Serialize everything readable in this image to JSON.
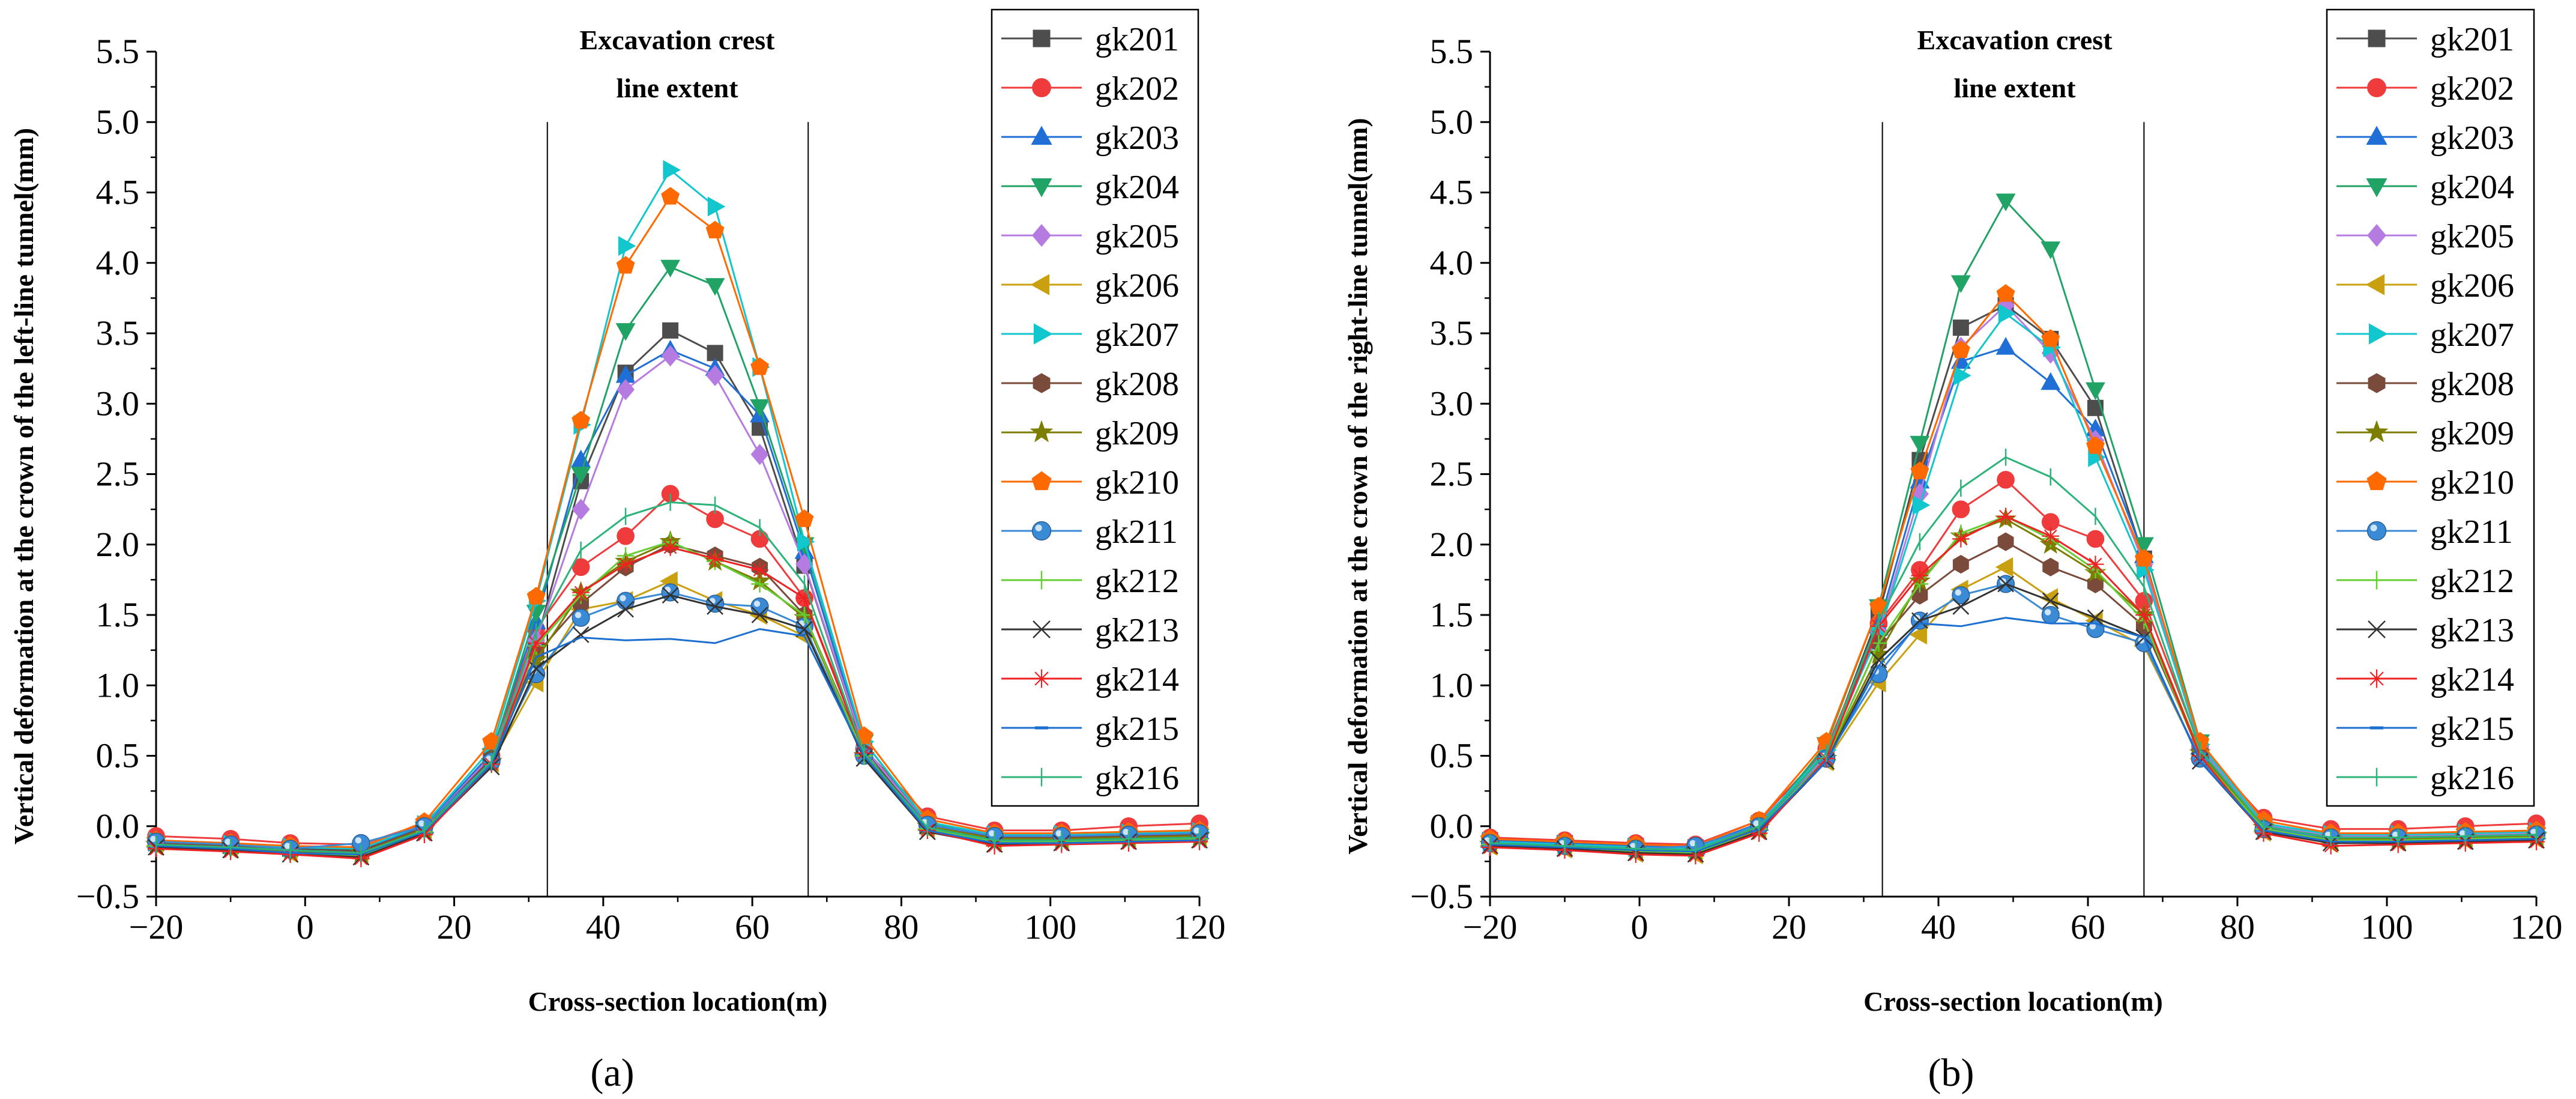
{
  "chart_data": [
    {
      "type": "line",
      "panel_label": "(a)",
      "panel_letter": "a",
      "title": "",
      "xlabel": "Cross-section location(m)",
      "ylabel": "Vertical deformation at the crown of the left-line tunnel(mm)",
      "xlim": [
        -20,
        120
      ],
      "ylim": [
        -0.5,
        5.5
      ],
      "xticks": [
        -20,
        0,
        20,
        40,
        60,
        80,
        100,
        120
      ],
      "xtick_labels": [
        "−20",
        "0",
        "20",
        "40",
        "60",
        "80",
        "100",
        "120"
      ],
      "yticks": [
        -0.5,
        0.0,
        0.5,
        1.0,
        1.5,
        2.0,
        2.5,
        3.0,
        3.5,
        4.0,
        4.5,
        5.0,
        5.5
      ],
      "ytick_labels": [
        "−0.5",
        "0.0",
        "0.5",
        "1.0",
        "1.5",
        "2.0",
        "2.5",
        "3.0",
        "3.5",
        "4.0",
        "4.5",
        "5.0",
        "5.5"
      ],
      "grid": false,
      "legend_position": "top-right",
      "vlines": [
        32.5,
        67.5
      ],
      "annotation": [
        "Excavation crest",
        "line extent"
      ],
      "x": [
        -20,
        -10,
        -2,
        7.5,
        16,
        25,
        31,
        37,
        43,
        49,
        55,
        61,
        67,
        75,
        83.5,
        92.5,
        101.5,
        110.5,
        120
      ],
      "series": [
        {
          "name": "gk201",
          "values": [
            -0.12,
            -0.14,
            -0.16,
            -0.17,
            0.0,
            0.5,
            1.3,
            2.45,
            3.22,
            3.52,
            3.36,
            2.83,
            1.85,
            0.55,
            0.0,
            -0.07,
            -0.07,
            -0.06,
            -0.05
          ]
        },
        {
          "name": "gk202",
          "values": [
            -0.07,
            -0.09,
            -0.12,
            -0.13,
            0.02,
            0.5,
            1.4,
            1.84,
            2.06,
            2.36,
            2.18,
            2.04,
            1.62,
            0.55,
            0.07,
            -0.03,
            -0.03,
            0.0,
            0.02
          ]
        },
        {
          "name": "gk203",
          "values": [
            -0.1,
            -0.12,
            -0.15,
            -0.16,
            0.0,
            0.52,
            1.45,
            2.6,
            3.2,
            3.38,
            3.25,
            2.92,
            1.95,
            0.56,
            0.02,
            -0.06,
            -0.06,
            -0.05,
            -0.04
          ]
        },
        {
          "name": "gk204",
          "values": [
            -0.13,
            -0.15,
            -0.18,
            -0.19,
            -0.02,
            0.5,
            1.52,
            2.5,
            3.52,
            3.97,
            3.84,
            2.98,
            2.0,
            0.6,
            0.02,
            -0.08,
            -0.08,
            -0.08,
            -0.07
          ]
        },
        {
          "name": "gk205",
          "values": [
            -0.12,
            -0.14,
            -0.17,
            -0.18,
            -0.01,
            0.5,
            1.32,
            2.25,
            3.1,
            3.34,
            3.2,
            2.64,
            1.86,
            0.56,
            0.01,
            -0.07,
            -0.07,
            -0.06,
            -0.05
          ]
        },
        {
          "name": "gk206",
          "values": [
            -0.14,
            -0.16,
            -0.19,
            -0.2,
            -0.03,
            0.45,
            1.02,
            1.54,
            1.6,
            1.74,
            1.6,
            1.5,
            1.35,
            0.5,
            -0.02,
            -0.1,
            -0.1,
            -0.09,
            -0.08
          ]
        },
        {
          "name": "gk207",
          "values": [
            -0.11,
            -0.13,
            -0.15,
            -0.16,
            0.01,
            0.55,
            1.6,
            2.85,
            4.12,
            4.66,
            4.4,
            3.26,
            2.02,
            0.6,
            0.03,
            -0.06,
            -0.06,
            -0.05,
            -0.04
          ]
        },
        {
          "name": "gk208",
          "values": [
            -0.12,
            -0.14,
            -0.17,
            -0.18,
            -0.01,
            0.48,
            1.22,
            1.58,
            1.84,
            2.0,
            1.92,
            1.84,
            1.5,
            0.52,
            0.01,
            -0.08,
            -0.08,
            -0.07,
            -0.06
          ]
        },
        {
          "name": "gk209",
          "values": [
            -0.13,
            -0.15,
            -0.18,
            -0.19,
            -0.02,
            0.46,
            1.18,
            1.66,
            1.88,
            2.02,
            1.88,
            1.74,
            1.48,
            0.5,
            0.0,
            -0.09,
            -0.09,
            -0.08,
            -0.07
          ]
        },
        {
          "name": "gk210",
          "values": [
            -0.1,
            -0.12,
            -0.14,
            -0.15,
            0.03,
            0.6,
            1.63,
            2.88,
            3.98,
            4.47,
            4.23,
            3.26,
            2.18,
            0.64,
            0.05,
            -0.05,
            -0.05,
            -0.04,
            -0.03
          ]
        },
        {
          "name": "gk211",
          "values": [
            -0.11,
            -0.13,
            -0.16,
            -0.12,
            0.0,
            0.46,
            1.08,
            1.48,
            1.6,
            1.66,
            1.58,
            1.56,
            1.42,
            0.5,
            0.01,
            -0.07,
            -0.07,
            -0.06,
            -0.05
          ]
        },
        {
          "name": "gk212",
          "values": [
            -0.14,
            -0.16,
            -0.19,
            -0.21,
            -0.04,
            0.44,
            1.28,
            1.64,
            1.92,
            2.02,
            1.88,
            1.72,
            1.5,
            0.5,
            -0.02,
            -0.11,
            -0.11,
            -0.1,
            -0.09
          ]
        },
        {
          "name": "gk213",
          "values": [
            -0.15,
            -0.17,
            -0.2,
            -0.22,
            -0.05,
            0.42,
            1.12,
            1.36,
            1.54,
            1.64,
            1.56,
            1.5,
            1.4,
            0.48,
            -0.04,
            -0.13,
            -0.12,
            -0.11,
            -0.1
          ]
        },
        {
          "name": "gk214",
          "values": [
            -0.16,
            -0.18,
            -0.2,
            -0.23,
            -0.06,
            0.44,
            1.3,
            1.66,
            1.86,
            1.98,
            1.9,
            1.82,
            1.62,
            0.52,
            -0.03,
            -0.14,
            -0.13,
            -0.12,
            -0.11
          ]
        },
        {
          "name": "gk215",
          "values": [
            -0.14,
            -0.16,
            -0.19,
            -0.2,
            -0.04,
            0.44,
            1.2,
            1.34,
            1.32,
            1.33,
            1.3,
            1.4,
            1.35,
            0.5,
            -0.03,
            -0.12,
            -0.12,
            -0.11,
            -0.1
          ]
        },
        {
          "name": "gk216",
          "values": [
            -0.13,
            -0.15,
            -0.17,
            -0.19,
            -0.03,
            0.46,
            1.38,
            1.96,
            2.2,
            2.3,
            2.28,
            2.12,
            1.72,
            0.52,
            -0.01,
            -0.1,
            -0.1,
            -0.09,
            -0.08
          ]
        }
      ]
    },
    {
      "type": "line",
      "panel_label": "(b)",
      "panel_letter": "b",
      "title": "",
      "xlabel": "Cross-section location(m)",
      "ylabel": "Vertical deformation at the crown of the right-line tunnel(mm)",
      "xlim": [
        -20,
        120
      ],
      "ylim": [
        -0.5,
        5.5
      ],
      "xticks": [
        -20,
        0,
        20,
        40,
        60,
        80,
        100,
        120
      ],
      "xtick_labels": [
        "−20",
        "0",
        "20",
        "40",
        "60",
        "80",
        "100",
        "120"
      ],
      "yticks": [
        -0.5,
        0.0,
        0.5,
        1.0,
        1.5,
        2.0,
        2.5,
        3.0,
        3.5,
        4.0,
        4.5,
        5.0,
        5.5
      ],
      "ytick_labels": [
        "−0.5",
        "0.0",
        "0.5",
        "1.0",
        "1.5",
        "2.0",
        "2.5",
        "3.0",
        "3.5",
        "4.0",
        "4.5",
        "5.0",
        "5.5"
      ],
      "grid": false,
      "legend_position": "top-right",
      "vlines": [
        32.5,
        67.5
      ],
      "annotation": [
        "Excavation crest",
        "line extent"
      ],
      "x": [
        -20,
        -10,
        -0.5,
        7.5,
        16,
        25,
        32,
        37.5,
        43,
        49,
        55,
        61,
        67.5,
        75,
        83.5,
        92.5,
        101.5,
        110.5,
        120
      ],
      "series": [
        {
          "name": "gk201",
          "values": [
            -0.1,
            -0.12,
            -0.14,
            -0.15,
            0.02,
            0.52,
            1.5,
            2.6,
            3.54,
            3.7,
            3.46,
            2.97,
            1.9,
            0.56,
            0.02,
            -0.06,
            -0.06,
            -0.05,
            -0.04
          ]
        },
        {
          "name": "gk202",
          "values": [
            -0.08,
            -0.1,
            -0.12,
            -0.13,
            0.04,
            0.55,
            1.44,
            1.82,
            2.25,
            2.46,
            2.16,
            2.04,
            1.6,
            0.56,
            0.06,
            -0.02,
            -0.02,
            0.0,
            0.02
          ]
        },
        {
          "name": "gk203",
          "values": [
            -0.1,
            -0.12,
            -0.14,
            -0.15,
            0.02,
            0.52,
            1.42,
            2.45,
            3.3,
            3.4,
            3.15,
            2.82,
            1.92,
            0.56,
            0.02,
            -0.06,
            -0.06,
            -0.05,
            -0.04
          ]
        },
        {
          "name": "gk204",
          "values": [
            -0.12,
            -0.14,
            -0.17,
            -0.18,
            -0.01,
            0.58,
            1.56,
            2.72,
            3.86,
            4.44,
            4.1,
            3.1,
            2.0,
            0.6,
            0.0,
            -0.08,
            -0.08,
            -0.07,
            -0.06
          ]
        },
        {
          "name": "gk205",
          "values": [
            -0.11,
            -0.13,
            -0.15,
            -0.16,
            0.01,
            0.5,
            1.38,
            2.36,
            3.4,
            3.7,
            3.36,
            2.74,
            1.86,
            0.56,
            0.01,
            -0.07,
            -0.07,
            -0.06,
            -0.05
          ]
        },
        {
          "name": "gk206",
          "values": [
            -0.14,
            -0.16,
            -0.19,
            -0.2,
            -0.03,
            0.46,
            1.02,
            1.36,
            1.68,
            1.84,
            1.62,
            1.46,
            1.28,
            0.48,
            -0.04,
            -0.12,
            -0.11,
            -0.1,
            -0.09
          ]
        },
        {
          "name": "gk207",
          "values": [
            -0.11,
            -0.13,
            -0.15,
            -0.16,
            0.01,
            0.54,
            1.36,
            2.28,
            3.2,
            3.64,
            3.4,
            2.62,
            1.82,
            0.58,
            0.02,
            -0.06,
            -0.06,
            -0.05,
            -0.04
          ]
        },
        {
          "name": "gk208",
          "values": [
            -0.12,
            -0.14,
            -0.16,
            -0.17,
            0.0,
            0.48,
            1.3,
            1.64,
            1.86,
            2.02,
            1.84,
            1.72,
            1.42,
            0.52,
            0.0,
            -0.08,
            -0.08,
            -0.07,
            -0.06
          ]
        },
        {
          "name": "gk209",
          "values": [
            -0.13,
            -0.15,
            -0.17,
            -0.18,
            -0.01,
            0.48,
            1.22,
            1.74,
            2.06,
            2.18,
            2.0,
            1.8,
            1.5,
            0.52,
            -0.01,
            -0.09,
            -0.09,
            -0.08,
            -0.07
          ]
        },
        {
          "name": "gk210",
          "values": [
            -0.09,
            -0.11,
            -0.13,
            -0.14,
            0.04,
            0.6,
            1.56,
            2.52,
            3.38,
            3.78,
            3.46,
            2.7,
            1.9,
            0.6,
            0.04,
            -0.05,
            -0.05,
            -0.04,
            -0.03
          ]
        },
        {
          "name": "gk211",
          "values": [
            -0.12,
            -0.14,
            -0.16,
            -0.14,
            0.0,
            0.48,
            1.08,
            1.46,
            1.64,
            1.72,
            1.5,
            1.4,
            1.3,
            0.48,
            -0.02,
            -0.08,
            -0.08,
            -0.07,
            -0.06
          ]
        },
        {
          "name": "gk212",
          "values": [
            -0.13,
            -0.15,
            -0.18,
            -0.19,
            -0.02,
            0.48,
            1.3,
            1.72,
            2.08,
            2.2,
            2.04,
            1.82,
            1.46,
            0.5,
            -0.02,
            -0.1,
            -0.1,
            -0.09,
            -0.08
          ]
        },
        {
          "name": "gk213",
          "values": [
            -0.14,
            -0.16,
            -0.19,
            -0.2,
            -0.04,
            0.46,
            1.18,
            1.46,
            1.56,
            1.72,
            1.6,
            1.48,
            1.34,
            0.46,
            -0.04,
            -0.12,
            -0.12,
            -0.11,
            -0.1
          ]
        },
        {
          "name": "gk214",
          "values": [
            -0.15,
            -0.17,
            -0.2,
            -0.21,
            -0.05,
            0.48,
            1.42,
            1.78,
            2.04,
            2.2,
            2.06,
            1.86,
            1.5,
            0.5,
            -0.05,
            -0.14,
            -0.13,
            -0.12,
            -0.11
          ]
        },
        {
          "name": "gk215",
          "values": [
            -0.13,
            -0.15,
            -0.17,
            -0.18,
            -0.02,
            0.46,
            1.14,
            1.44,
            1.42,
            1.48,
            1.44,
            1.44,
            1.34,
            0.46,
            -0.03,
            -0.11,
            -0.11,
            -0.1,
            -0.09
          ]
        },
        {
          "name": "gk216",
          "values": [
            -0.12,
            -0.14,
            -0.16,
            -0.17,
            0.0,
            0.52,
            1.46,
            2.02,
            2.4,
            2.62,
            2.48,
            2.2,
            1.7,
            0.54,
            0.0,
            -0.08,
            -0.08,
            -0.07,
            -0.06
          ]
        }
      ]
    }
  ],
  "series_styles": [
    {
      "color": "#4d4d4d",
      "marker": "square"
    },
    {
      "color": "#ef3b3b",
      "marker": "circle"
    },
    {
      "color": "#1f6fd6",
      "marker": "triangle-up"
    },
    {
      "color": "#21a366",
      "marker": "triangle-down"
    },
    {
      "color": "#b57be0",
      "marker": "diamond"
    },
    {
      "color": "#c9a010",
      "marker": "triangle-left"
    },
    {
      "color": "#11c6cc",
      "marker": "triangle-right"
    },
    {
      "color": "#7a4a3a",
      "marker": "hexagon"
    },
    {
      "color": "#7d7d00",
      "marker": "star"
    },
    {
      "color": "#ff6a00",
      "marker": "pentagon"
    },
    {
      "color": "#3a8ad6",
      "marker": "sphere"
    },
    {
      "color": "#66cc33",
      "marker": "plus"
    },
    {
      "color": "#333333",
      "marker": "x"
    },
    {
      "color": "#ee2222",
      "marker": "asterisk"
    },
    {
      "color": "#1a6fd0",
      "marker": "dash"
    },
    {
      "color": "#2bb37a",
      "marker": "vbar"
    }
  ]
}
